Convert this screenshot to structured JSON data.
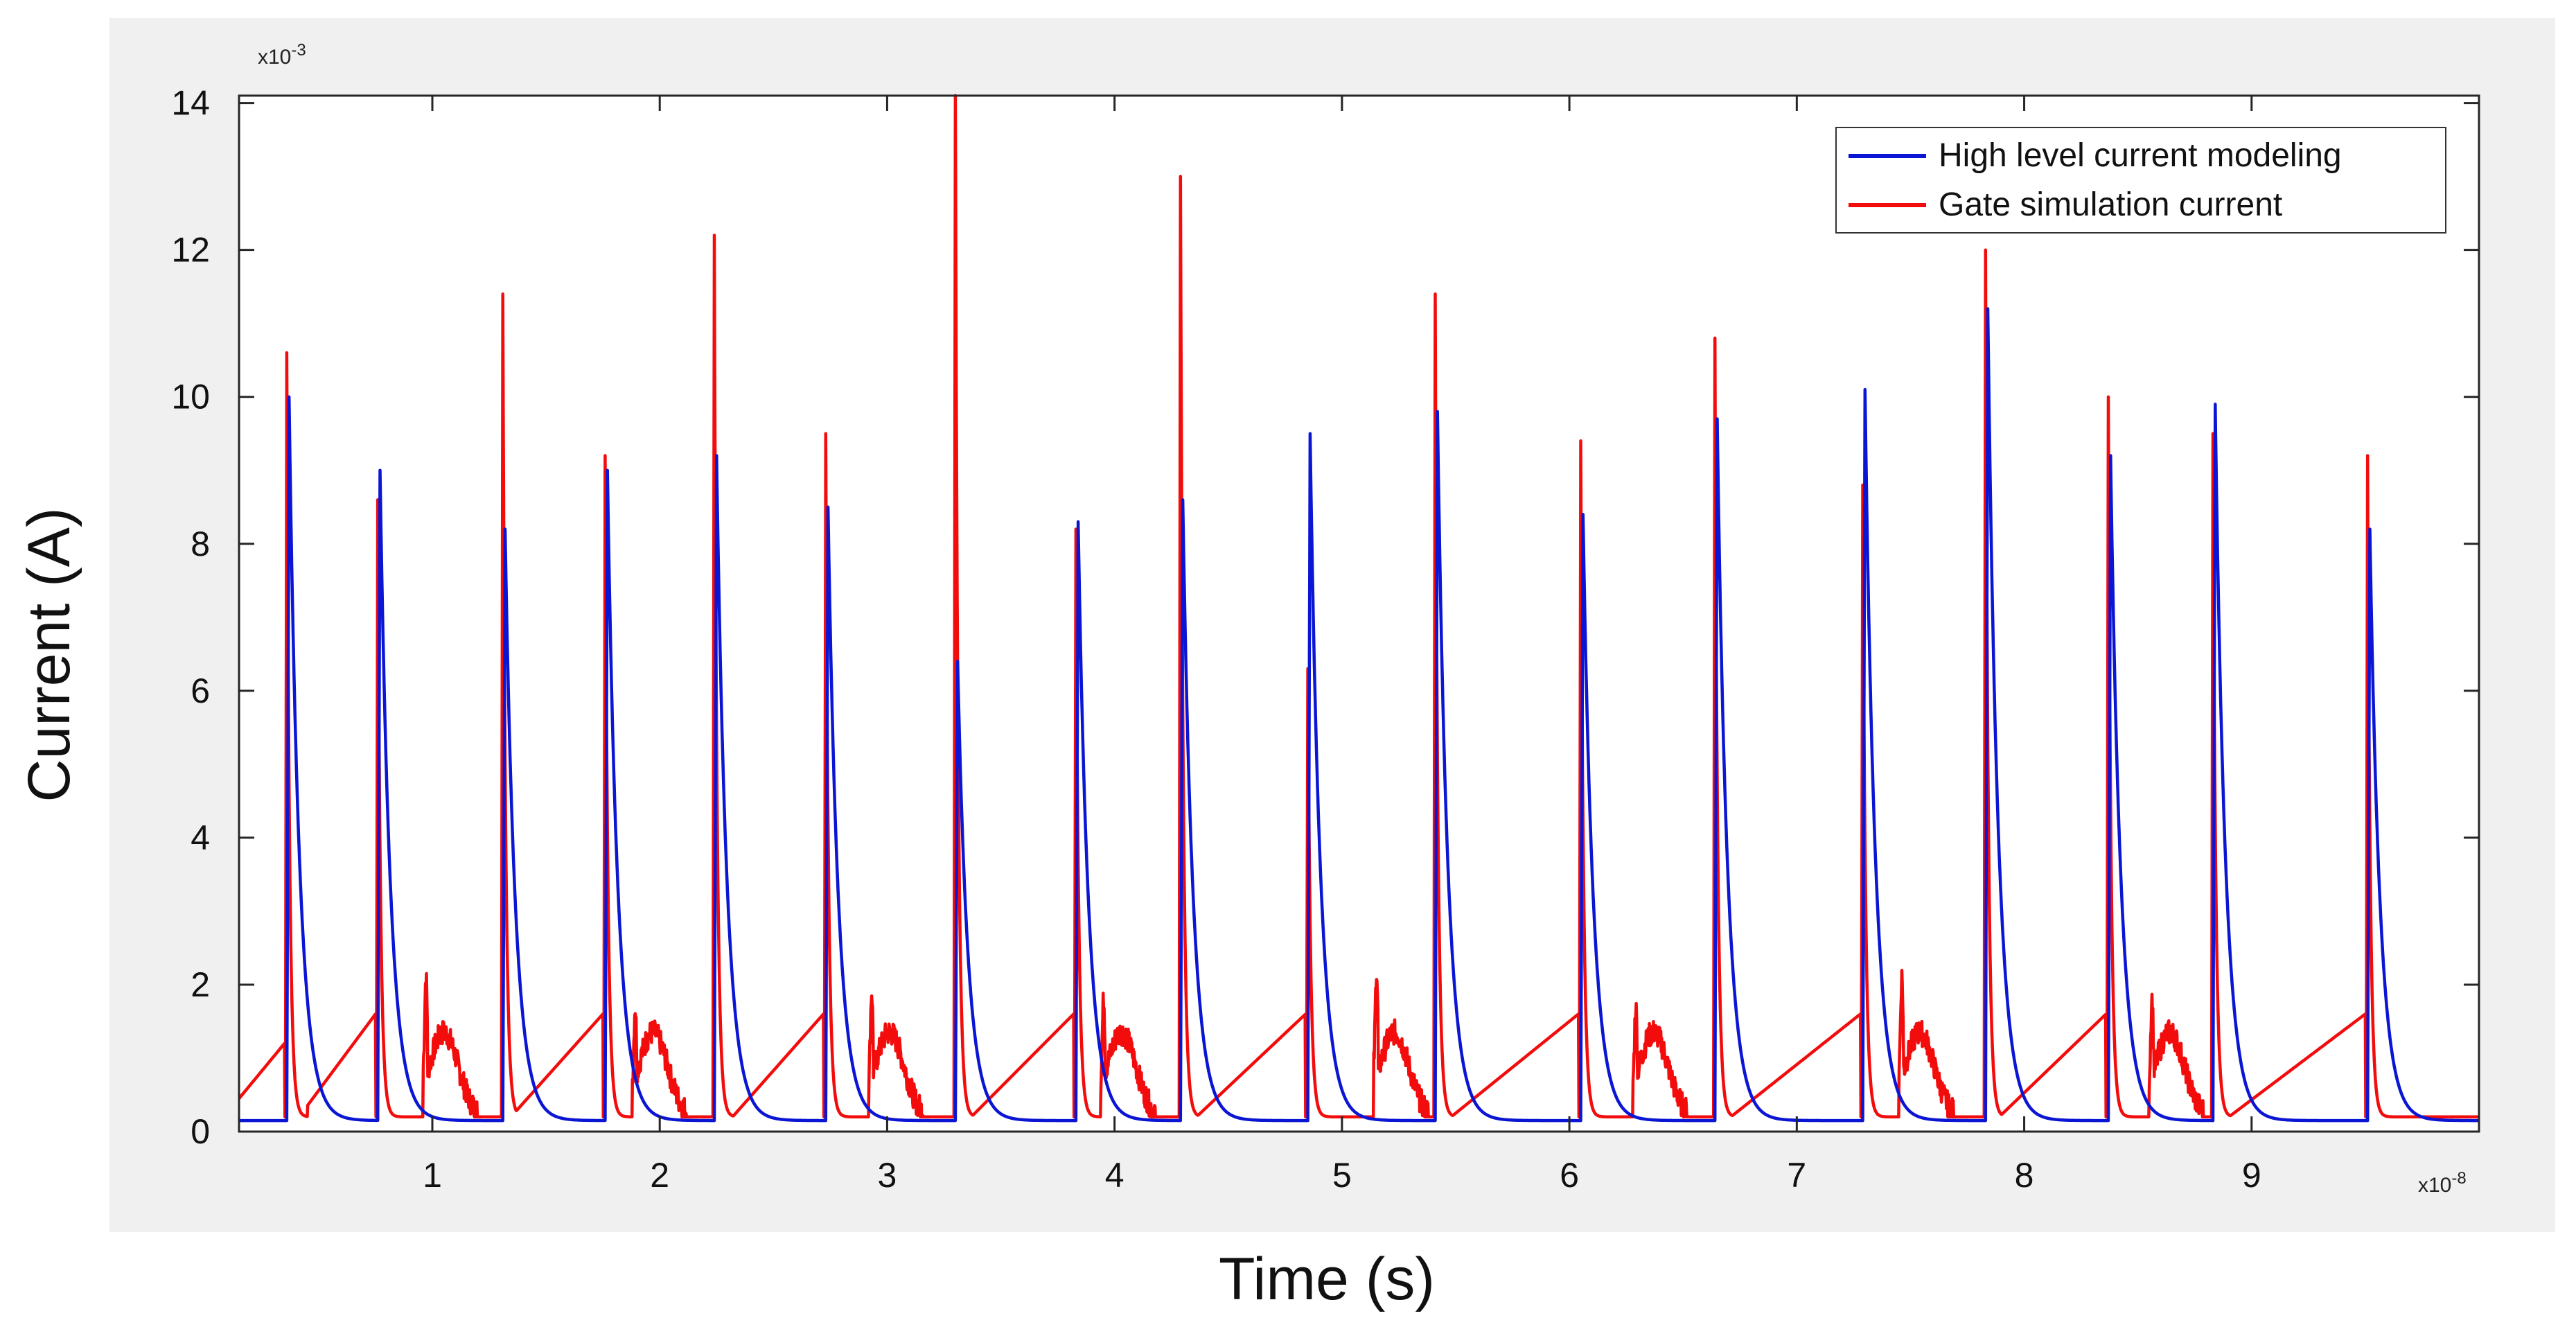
{
  "chart_data": {
    "type": "line",
    "title": "",
    "xlabel": "Time (s)",
    "ylabel": "Current (A)",
    "x_multiplier": "x10",
    "x_exponent": "-8",
    "y_multiplier": "x10",
    "y_exponent": "-3",
    "x_units": "seconds x 1e-8",
    "y_units": "amperes x 1e-3",
    "xlim": [
      0.15,
      10.0
    ],
    "ylim": [
      0,
      14.1
    ],
    "xticks": [
      1,
      2,
      3,
      4,
      5,
      6,
      7,
      8,
      9
    ],
    "xtick_labels": [
      "1",
      "2",
      "3",
      "4",
      "5",
      "6",
      "7",
      "8",
      "9"
    ],
    "yticks": [
      0,
      2,
      4,
      6,
      8,
      10,
      12,
      14
    ],
    "ytick_labels": [
      "0",
      "2",
      "4",
      "6",
      "8",
      "10",
      "12",
      "14"
    ],
    "grid": false,
    "legend_position": "top-right",
    "legend": [
      "High level current modeling",
      "Gate simulation current"
    ],
    "series": [
      {
        "name": "High level current modeling",
        "color": "#0b16d4",
        "baseline": 0.15,
        "decay_tau": 0.045,
        "spikes": [
          {
            "t": 0.37,
            "peak": 10.0
          },
          {
            "t": 0.77,
            "peak": 9.0
          },
          {
            "t": 1.32,
            "peak": 8.2
          },
          {
            "t": 1.77,
            "peak": 9.0
          },
          {
            "t": 2.25,
            "peak": 9.2
          },
          {
            "t": 2.74,
            "peak": 8.5
          },
          {
            "t": 3.31,
            "peak": 6.4
          },
          {
            "t": 3.84,
            "peak": 8.3
          },
          {
            "t": 4.3,
            "peak": 8.6
          },
          {
            "t": 4.86,
            "peak": 9.5
          },
          {
            "t": 5.42,
            "peak": 9.8
          },
          {
            "t": 6.06,
            "peak": 8.4
          },
          {
            "t": 6.65,
            "peak": 9.7
          },
          {
            "t": 7.3,
            "peak": 10.1
          },
          {
            "t": 7.84,
            "peak": 11.2
          },
          {
            "t": 8.38,
            "peak": 9.2
          },
          {
            "t": 8.84,
            "peak": 9.9
          },
          {
            "t": 9.52,
            "peak": 8.2
          }
        ]
      },
      {
        "name": "Gate simulation current",
        "color": "#f20c0c",
        "baseline": 0.2,
        "spikes": [
          {
            "t": 0.36,
            "peak": 10.6
          },
          {
            "t": 0.76,
            "peak": 8.6
          },
          {
            "t": 1.31,
            "peak": 11.4
          },
          {
            "t": 1.76,
            "peak": 9.2
          },
          {
            "t": 2.24,
            "peak": 12.2
          },
          {
            "t": 2.73,
            "peak": 9.5
          },
          {
            "t": 3.3,
            "peak": 14.1
          },
          {
            "t": 3.83,
            "peak": 8.2
          },
          {
            "t": 4.29,
            "peak": 13.0
          },
          {
            "t": 4.85,
            "peak": 6.3
          },
          {
            "t": 5.41,
            "peak": 11.4
          },
          {
            "t": 6.05,
            "peak": 9.4
          },
          {
            "t": 6.64,
            "peak": 10.8
          },
          {
            "t": 7.29,
            "peak": 8.8
          },
          {
            "t": 7.83,
            "peak": 12.0
          },
          {
            "t": 8.37,
            "peak": 10.0
          },
          {
            "t": 8.83,
            "peak": 9.5
          },
          {
            "t": 9.51,
            "peak": 9.2
          }
        ],
        "ramps": [
          {
            "t0": 0.15,
            "t1": 0.35,
            "v0": 0.45,
            "v1": 1.2
          },
          {
            "t0": 0.45,
            "t1": 0.75,
            "v0": 0.35,
            "v1": 1.6
          },
          {
            "t0": 1.36,
            "t1": 1.75,
            "v0": 0.25,
            "v1": 1.6
          },
          {
            "t0": 2.32,
            "t1": 2.72,
            "v0": 0.2,
            "v1": 1.6
          },
          {
            "t0": 3.37,
            "t1": 3.82,
            "v0": 0.2,
            "v1": 1.6
          },
          {
            "t0": 4.36,
            "t1": 4.84,
            "v0": 0.2,
            "v1": 1.6
          },
          {
            "t0": 5.48,
            "t1": 6.04,
            "v0": 0.2,
            "v1": 1.6
          },
          {
            "t0": 6.71,
            "t1": 7.28,
            "v0": 0.2,
            "v1": 1.6
          },
          {
            "t0": 7.89,
            "t1": 8.36,
            "v0": 0.2,
            "v1": 1.6
          },
          {
            "t0": 8.9,
            "t1": 9.5,
            "v0": 0.2,
            "v1": 1.6
          }
        ],
        "bursts": [
          {
            "t": 0.96,
            "peak": 2.1
          },
          {
            "t": 1.88,
            "peak": 1.7
          },
          {
            "t": 2.92,
            "peak": 1.9
          },
          {
            "t": 3.94,
            "peak": 1.8
          },
          {
            "t": 5.14,
            "peak": 2.2
          },
          {
            "t": 6.28,
            "peak": 1.7
          },
          {
            "t": 7.45,
            "peak": 2.1
          },
          {
            "t": 8.55,
            "peak": 1.8
          }
        ]
      }
    ]
  }
}
